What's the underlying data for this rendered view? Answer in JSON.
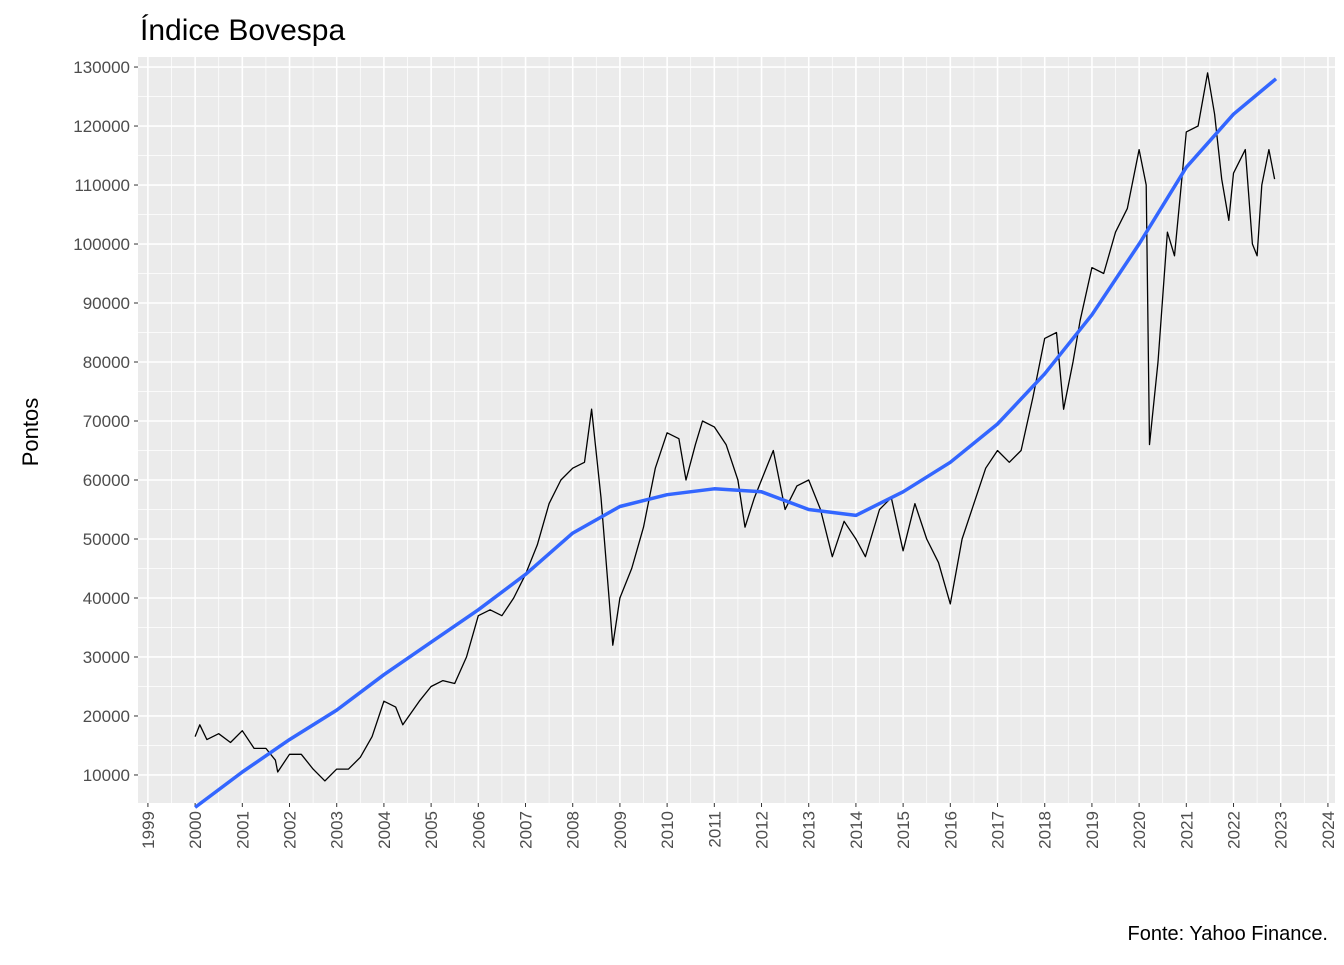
{
  "chart_data": {
    "type": "line",
    "title": "Índice Bovespa",
    "ylabel": "Pontos",
    "caption": "Fonte: Yahoo Finance.",
    "xlim": [
      1998.79,
      2024.15
    ],
    "xticks": [
      1999,
      2000,
      2001,
      2002,
      2003,
      2004,
      2005,
      2006,
      2007,
      2008,
      2009,
      2010,
      2011,
      2012,
      2013,
      2014,
      2015,
      2016,
      2017,
      2018,
      2019,
      2020,
      2021,
      2022,
      2023,
      2024
    ],
    "ylim": [
      5250,
      131700
    ],
    "yticks": [
      10000,
      20000,
      30000,
      40000,
      50000,
      60000,
      70000,
      80000,
      90000,
      100000,
      110000,
      120000,
      130000
    ],
    "grid": true,
    "series": [
      {
        "color": "#000000",
        "x": [
          2000.0,
          2000.1,
          2000.25,
          2000.5,
          2000.75,
          2001.0,
          2001.25,
          2001.5,
          2001.7,
          2001.75,
          2002.0,
          2002.25,
          2002.5,
          2002.75,
          2003.0,
          2003.25,
          2003.5,
          2003.75,
          2004.0,
          2004.25,
          2004.4,
          2004.75,
          2005.0,
          2005.25,
          2005.5,
          2005.75,
          2006.0,
          2006.25,
          2006.5,
          2006.75,
          2007.0,
          2007.25,
          2007.5,
          2007.75,
          2008.0,
          2008.25,
          2008.4,
          2008.6,
          2008.75,
          2008.85,
          2009.0,
          2009.25,
          2009.5,
          2009.75,
          2010.0,
          2010.25,
          2010.4,
          2010.6,
          2010.75,
          2011.0,
          2011.25,
          2011.5,
          2011.65,
          2011.85,
          2012.0,
          2012.25,
          2012.5,
          2012.75,
          2013.0,
          2013.25,
          2013.5,
          2013.75,
          2014.0,
          2014.2,
          2014.5,
          2014.75,
          2015.0,
          2015.25,
          2015.5,
          2015.75,
          2016.0,
          2016.25,
          2016.5,
          2016.75,
          2017.0,
          2017.25,
          2017.5,
          2017.75,
          2018.0,
          2018.25,
          2018.4,
          2018.6,
          2018.75,
          2019.0,
          2019.25,
          2019.5,
          2019.75,
          2020.0,
          2020.15,
          2020.22,
          2020.4,
          2020.6,
          2020.75,
          2021.0,
          2021.25,
          2021.45,
          2021.6,
          2021.75,
          2021.9,
          2022.0,
          2022.25,
          2022.4,
          2022.5,
          2022.6,
          2022.75,
          2022.87
        ],
        "values": [
          16500,
          18500,
          16000,
          17000,
          15500,
          17500,
          14500,
          14500,
          12500,
          10500,
          13500,
          13500,
          11000,
          9000,
          11000,
          11000,
          13000,
          16500,
          22500,
          21500,
          18500,
          22500,
          25000,
          26000,
          25500,
          30000,
          37000,
          38000,
          37000,
          40000,
          44000,
          49000,
          56000,
          60000,
          62000,
          63000,
          72000,
          57000,
          42000,
          32000,
          40000,
          45000,
          52000,
          62000,
          68000,
          67000,
          60000,
          66000,
          70000,
          69000,
          66000,
          60000,
          52000,
          57000,
          60000,
          65000,
          55000,
          59000,
          60000,
          55000,
          47000,
          53000,
          50000,
          47000,
          55000,
          57000,
          48000,
          56000,
          50000,
          46000,
          39000,
          50000,
          56000,
          62000,
          65000,
          63000,
          65000,
          74000,
          84000,
          85000,
          72000,
          80000,
          87000,
          96000,
          95000,
          102000,
          106000,
          116000,
          110000,
          66000,
          80000,
          102000,
          98000,
          119000,
          120000,
          129000,
          122000,
          111000,
          104000,
          112000,
          116000,
          100000,
          98000,
          110000,
          116000,
          111000
        ]
      },
      {
        "color": "#3366ff",
        "x": [
          2000,
          2001,
          2002,
          2003,
          2004,
          2005,
          2006,
          2007,
          2008,
          2009,
          2010,
          2011,
          2012,
          2013,
          2014,
          2015,
          2016,
          2017,
          2018,
          2019,
          2020,
          2021,
          2022,
          2022.9
        ],
        "values": [
          4500,
          10500,
          16000,
          21000,
          27000,
          32500,
          38000,
          44000,
          51000,
          55500,
          57500,
          58500,
          58000,
          55000,
          54000,
          58000,
          63000,
          69500,
          78000,
          88000,
          100000,
          113000,
          122000,
          128000
        ]
      }
    ]
  }
}
